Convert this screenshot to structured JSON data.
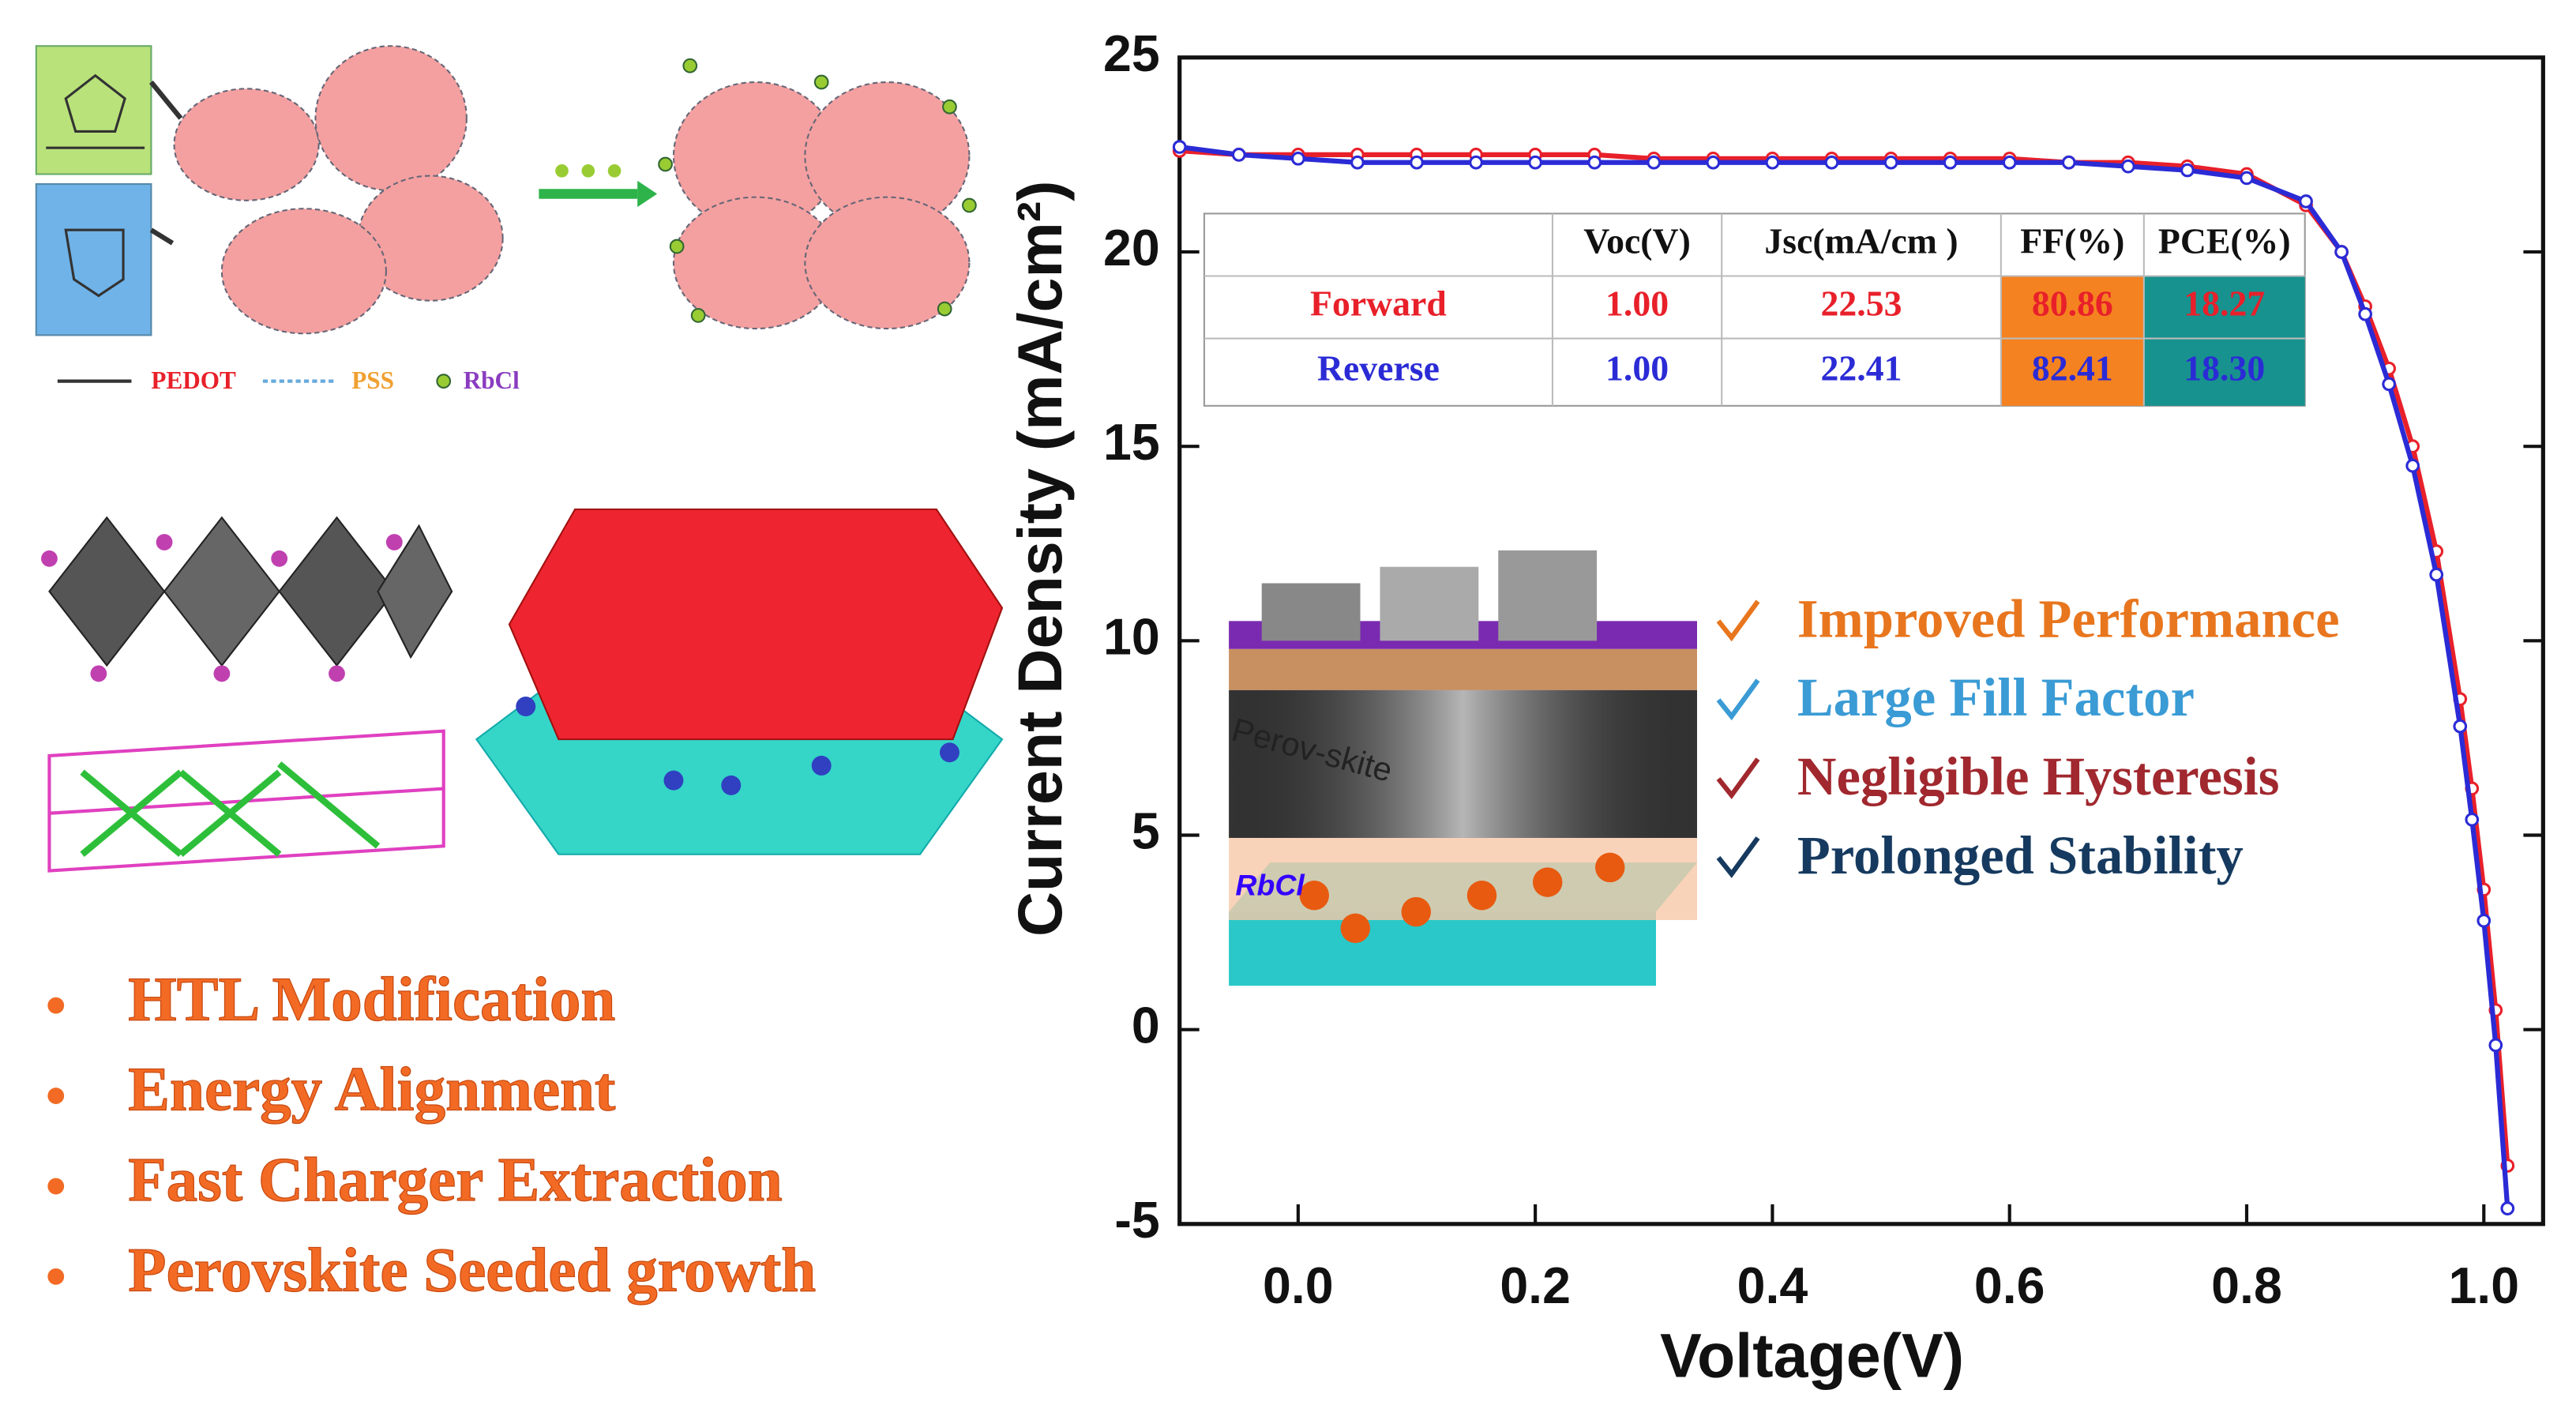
{
  "chart_data": {
    "type": "line",
    "xlabel": "Voltage(V)",
    "ylabel": "Current Density (mA/cm²)",
    "xlim": [
      -0.1,
      1.05
    ],
    "ylim": [
      -5,
      25
    ],
    "xticks": [
      {
        "value": 0,
        "label": "0.0"
      },
      0.2,
      0.4,
      0.6,
      0.8,
      {
        "value": 1,
        "label": "1.0"
      }
    ],
    "yticks": [
      -5,
      0,
      5,
      10,
      15,
      20,
      25
    ],
    "x": [
      -0.1,
      -0.05,
      0,
      0.05,
      0.1,
      0.15,
      0.2,
      0.25,
      0.3,
      0.35,
      0.4,
      0.45,
      0.5,
      0.55,
      0.6,
      0.65,
      0.7,
      0.75,
      0.8,
      0.85,
      0.88,
      0.9,
      0.92,
      0.94,
      0.96,
      0.98,
      0.99,
      1.0,
      1.01,
      1.02
    ],
    "series": [
      {
        "name": "Forward",
        "color": "#e8202a",
        "values": [
          22.6,
          22.5,
          22.5,
          22.5,
          22.5,
          22.5,
          22.5,
          22.5,
          22.4,
          22.4,
          22.4,
          22.4,
          22.4,
          22.4,
          22.4,
          22.3,
          22.3,
          22.2,
          22.0,
          21.2,
          20.0,
          18.6,
          17.0,
          15.0,
          12.3,
          8.5,
          6.2,
          3.6,
          0.5,
          -3.5
        ]
      },
      {
        "name": "Reverse",
        "color": "#2b2bd6",
        "values": [
          22.7,
          22.5,
          22.4,
          22.3,
          22.3,
          22.3,
          22.3,
          22.3,
          22.3,
          22.3,
          22.3,
          22.3,
          22.3,
          22.3,
          22.3,
          22.3,
          22.2,
          22.1,
          21.9,
          21.3,
          20.0,
          18.4,
          16.6,
          14.5,
          11.7,
          7.8,
          5.4,
          2.8,
          -0.4,
          -4.6
        ]
      }
    ],
    "table": {
      "header": [
        "Voc(V)",
        "Jsc(mA/cm )",
        "FF(%)",
        "PCE(%)"
      ],
      "rows": [
        [
          "Forward",
          "1.00",
          "22.53",
          "80.86",
          "18.27"
        ],
        [
          "Reverse",
          "1.00",
          "22.41",
          "82.41",
          "18.30"
        ]
      ]
    }
  },
  "schematic": {
    "legend": [
      "PEDOT",
      "PSS",
      "RbCl"
    ],
    "bullets": [
      "HTL Modification",
      "Energy Alignment",
      "Fast Charger Extraction",
      "Perovskite Seeded growth"
    ],
    "device_labels": [
      "Perov-skite",
      "RbCl"
    ],
    "checklist": [
      "Improved Performance",
      "Large Fill Factor",
      "Negligible Hysteresis",
      "Prolonged Stability"
    ]
  }
}
